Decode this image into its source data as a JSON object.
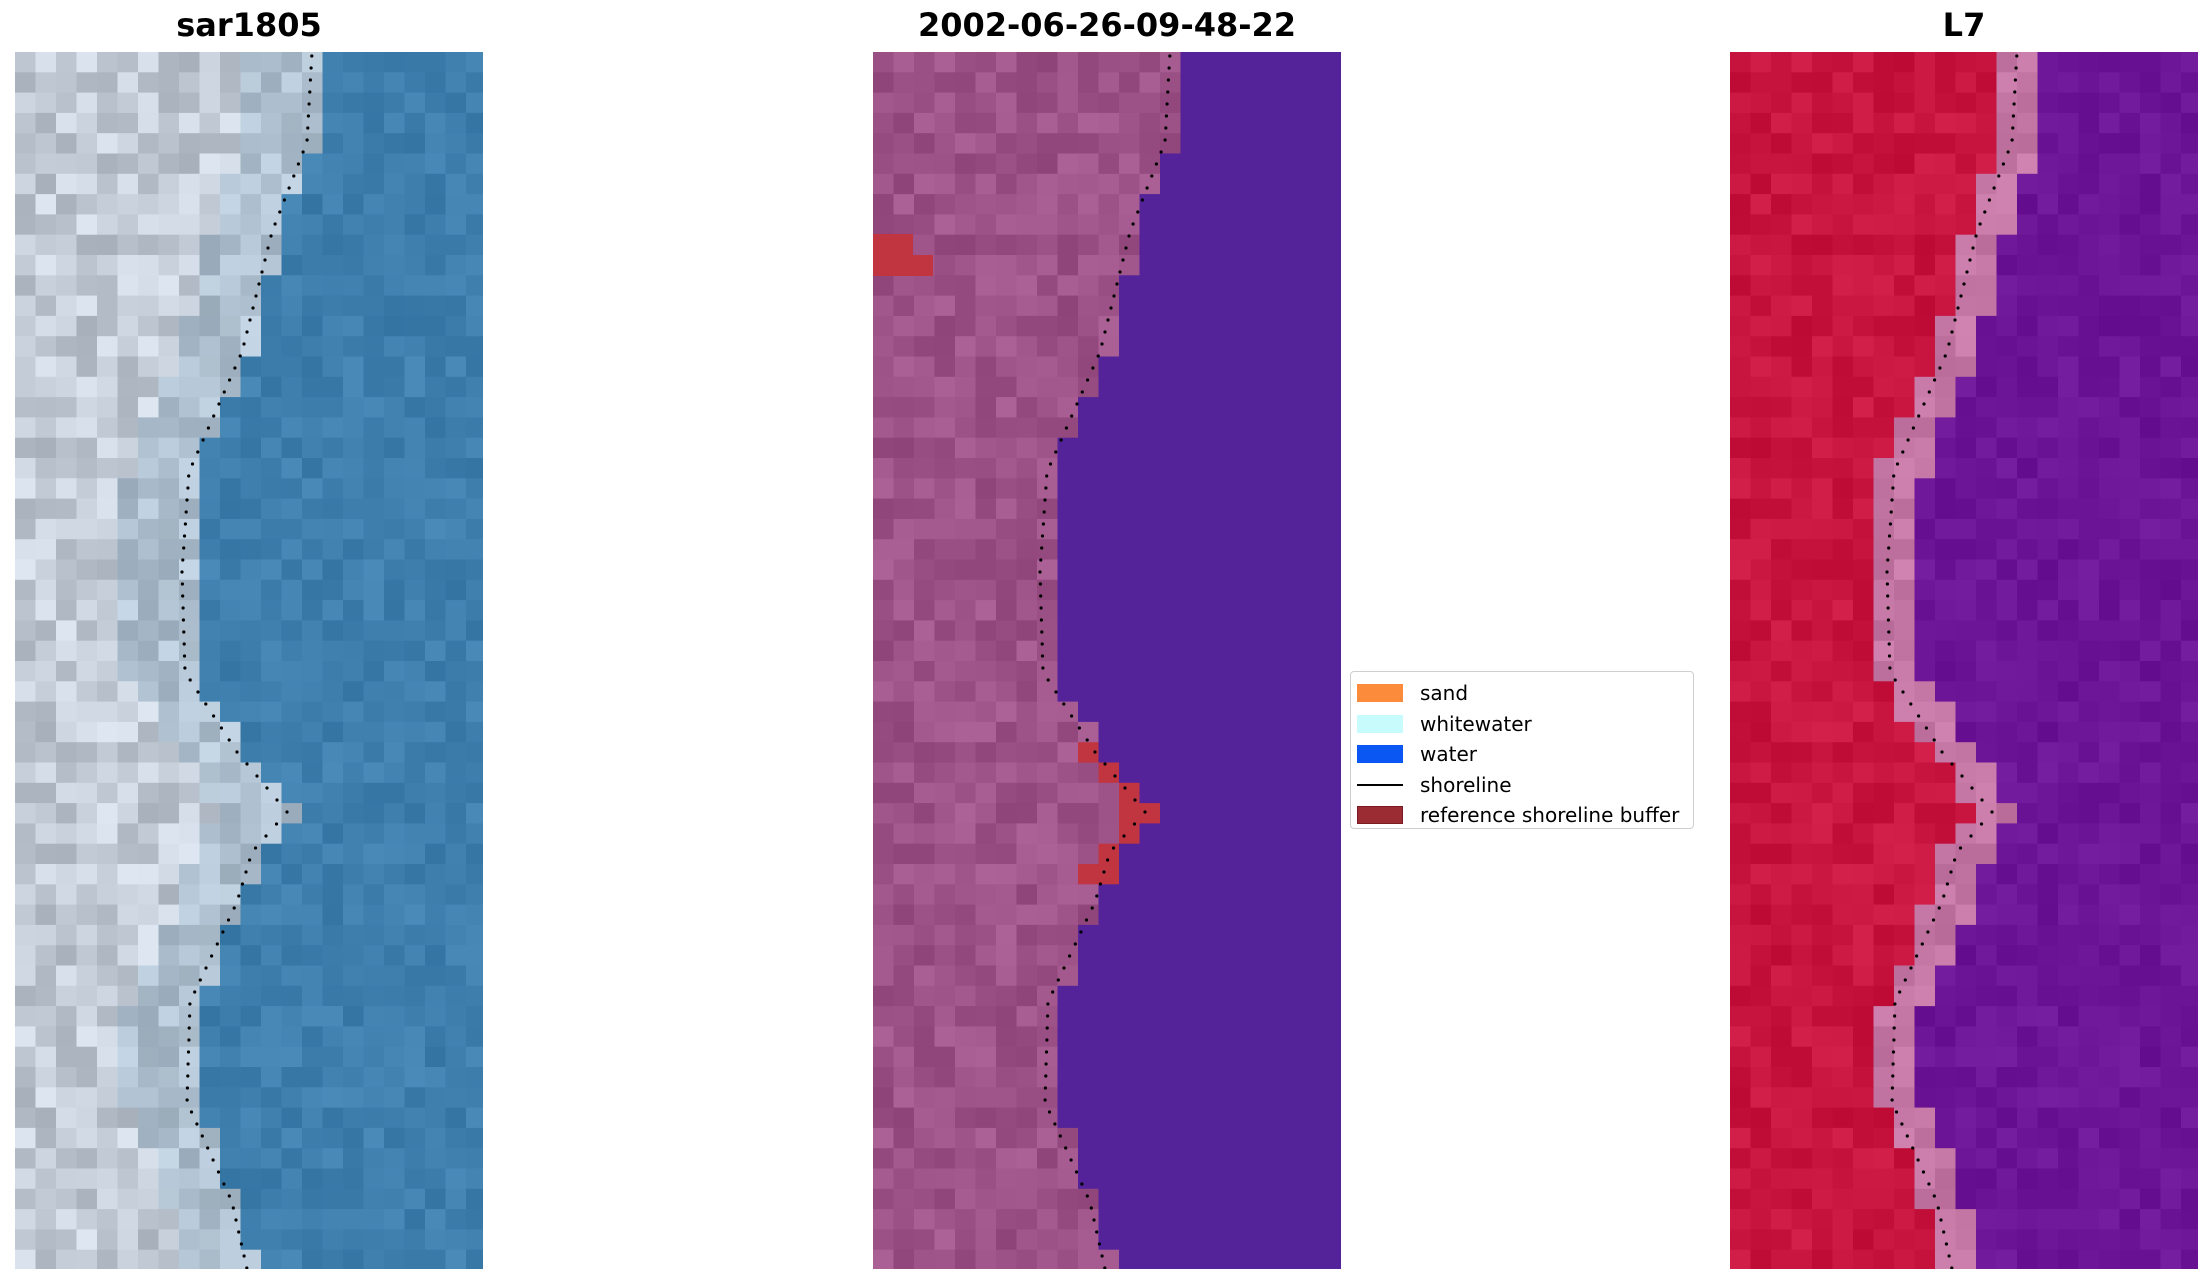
{
  "panels": [
    {
      "title": "sar1805"
    },
    {
      "title": "2002-06-26-09-48-22"
    },
    {
      "title": "L7"
    }
  ],
  "legend": {
    "items": [
      {
        "label": "sand",
        "color": "#fc8b3c",
        "kind": "patch"
      },
      {
        "label": "whitewater",
        "color": "#c8fcfc",
        "kind": "patch"
      },
      {
        "label": "water",
        "color": "#0a57f4",
        "kind": "patch"
      },
      {
        "label": "shoreline",
        "color": "#000000",
        "kind": "line"
      },
      {
        "label": "reference shoreline buffer",
        "color": "#9b2c33",
        "kind": "patch"
      }
    ]
  },
  "colors": {
    "sar_water": "#3f7fae",
    "sar_land": "#c3ccd6",
    "class_land": "#9d5288",
    "class_water": "#54239a",
    "buffer": "#c0353f",
    "l7_land": "#c8153f",
    "l7_water": "#6d1597",
    "l7_edge": "#c476a4"
  }
}
